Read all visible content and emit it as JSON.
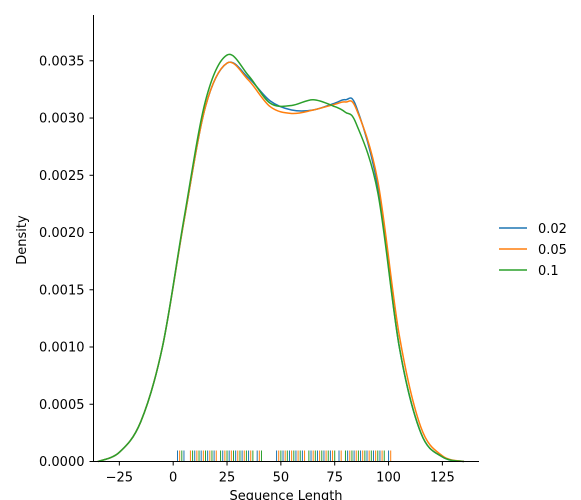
{
  "chart_data": {
    "type": "line",
    "title": "",
    "xlabel": "Sequence Length",
    "ylabel": "Density",
    "xlim": [
      -37,
      142
    ],
    "ylim": [
      0,
      0.0039
    ],
    "xticks": [
      -25,
      0,
      25,
      50,
      75,
      100,
      125
    ],
    "xtick_labels": [
      "−25",
      "0",
      "25",
      "50",
      "75",
      "100",
      "125"
    ],
    "yticks": [
      0,
      0.0005,
      0.001,
      0.0015,
      0.002,
      0.0025,
      0.003,
      0.0035
    ],
    "ytick_labels": [
      "0.0000",
      "0.0005",
      "0.0010",
      "0.0015",
      "0.0020",
      "0.0025",
      "0.0030",
      "0.0035"
    ],
    "grid": false,
    "legend_position": "right",
    "series": [
      {
        "name": "0.02",
        "color": "#1f77b4",
        "x": [
          -35,
          -25,
          -15,
          -5,
          5,
          15,
          25,
          35,
          45,
          55,
          65,
          75,
          80,
          85,
          95,
          105,
          115,
          125,
          135
        ],
        "y": [
          0.0,
          8e-05,
          0.00035,
          0.001,
          0.0021,
          0.0031,
          0.00348,
          0.00335,
          0.00315,
          0.00307,
          0.00307,
          0.00313,
          0.00316,
          0.0031,
          0.0024,
          0.001,
          0.00025,
          4e-05,
          0.0
        ]
      },
      {
        "name": "0.05",
        "color": "#ff7f0e",
        "x": [
          -35,
          -25,
          -15,
          -5,
          5,
          15,
          25,
          35,
          45,
          55,
          65,
          75,
          80,
          85,
          95,
          105,
          115,
          125,
          135
        ],
        "y": [
          0.0,
          8e-05,
          0.00035,
          0.001,
          0.0021,
          0.0031,
          0.00348,
          0.00333,
          0.0031,
          0.00304,
          0.00307,
          0.00312,
          0.00314,
          0.00308,
          0.00245,
          0.0011,
          0.0003,
          5e-05,
          0.0
        ]
      },
      {
        "name": "0.1",
        "color": "#2ca02c",
        "x": [
          -35,
          -25,
          -15,
          -5,
          5,
          15,
          25,
          35,
          45,
          55,
          65,
          75,
          80,
          85,
          95,
          105,
          115,
          125,
          135
        ],
        "y": [
          0.0,
          8e-05,
          0.00035,
          0.001,
          0.00212,
          0.00315,
          0.00355,
          0.00337,
          0.00313,
          0.00311,
          0.00316,
          0.0031,
          0.00305,
          0.00295,
          0.00235,
          0.001,
          0.00025,
          4e-05,
          0.0
        ]
      }
    ],
    "rug": {
      "colors": [
        "#1f77b4",
        "#ff7f0e",
        "#2ca02c"
      ],
      "x": [
        2,
        3,
        4,
        5,
        8,
        9,
        10,
        11,
        12,
        13,
        14,
        15,
        16,
        17,
        18,
        19,
        20,
        22,
        23,
        24,
        25,
        26,
        27,
        28,
        29,
        30,
        31,
        32,
        33,
        34,
        35,
        36,
        37,
        39,
        40,
        41,
        48,
        49,
        50,
        51,
        52,
        53,
        54,
        55,
        56,
        57,
        58,
        59,
        60,
        61,
        63,
        64,
        65,
        66,
        67,
        68,
        69,
        70,
        71,
        72,
        73,
        74,
        75,
        77,
        78,
        80,
        81,
        82,
        83,
        84,
        85,
        86,
        87,
        88,
        89,
        90,
        91,
        92,
        93,
        94,
        95,
        96,
        97,
        98,
        100,
        101
      ]
    }
  }
}
